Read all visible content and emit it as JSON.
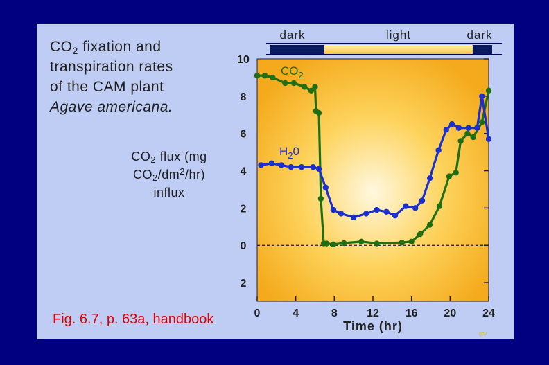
{
  "title": {
    "line1_pre": "CO",
    "line1_sub": "2",
    "line1_post": " fixation and",
    "line2": "transpiration rates",
    "line3": "of the CAM plant",
    "line4": "Agave americana."
  },
  "ylabel": {
    "line1_pre": "CO",
    "line1_sub": "2",
    "line1_post": " flux (mg",
    "line2_pre": "CO",
    "line2_sub": "2",
    "line2_mid": "/dm",
    "line2_sup": "2",
    "line2_post": "/hr)",
    "line3": "influx"
  },
  "citation": "Fig. 6.7, p. 63a, handbook",
  "mark": "gov",
  "colors": {
    "background": "#000080",
    "panel": "#bfcdf5",
    "co2_series": "#1f6e14",
    "h2o_series": "#1a2fd0",
    "citation": "#e00000"
  },
  "chart_data": {
    "type": "line",
    "xlabel": "Time (hr)",
    "ylabel": "CO2 flux (mg CO2/dm2/hr) influx",
    "xlim": [
      0,
      24
    ],
    "ylim": [
      -3,
      10
    ],
    "x_ticks": [
      "0",
      "4",
      "8",
      "12",
      "16",
      "20",
      "24"
    ],
    "y_ticks": [
      {
        "value": 10,
        "label": "10"
      },
      {
        "value": 8,
        "label": "8"
      },
      {
        "value": 6,
        "label": "6"
      },
      {
        "value": 4,
        "label": "4"
      },
      {
        "value": 2,
        "label": "2"
      },
      {
        "value": 0,
        "label": "0"
      },
      {
        "value": -2,
        "label": "2"
      }
    ],
    "zero_line": "dashed",
    "phases": [
      {
        "label": "dark",
        "start": 0,
        "end": 5.9
      },
      {
        "label": "light",
        "start": 5.9,
        "end": 21.9
      },
      {
        "label": "dark",
        "start": 21.9,
        "end": 24
      }
    ],
    "series": [
      {
        "name": "CO2",
        "label_parts": [
          "CO",
          "2"
        ],
        "x": [
          0,
          0.8,
          1.6,
          2.9,
          3.8,
          4.9,
          5.6,
          6.0,
          6.1,
          6.4,
          6.6,
          6.9,
          7.2,
          7.9,
          9.0,
          10.8,
          12.4,
          15.0,
          16.0,
          16.9,
          17.9,
          18.9,
          19.9,
          20.6,
          21.1,
          21.8,
          22.4,
          23.3,
          24.0
        ],
        "y": [
          9.1,
          9.1,
          9.0,
          8.7,
          8.7,
          8.5,
          8.3,
          8.5,
          7.2,
          7.1,
          2.5,
          0.1,
          0.1,
          0.05,
          0.12,
          0.2,
          0.1,
          0.15,
          0.2,
          0.6,
          1.1,
          2.1,
          3.7,
          3.9,
          5.6,
          6.0,
          5.8,
          6.6,
          8.3
        ]
      },
      {
        "name": "H20",
        "label_parts": [
          "H",
          "2",
          "0"
        ],
        "x": [
          0.4,
          1.5,
          2.5,
          3.5,
          4.6,
          5.8,
          6.4,
          7.1,
          7.9,
          8.7,
          10.0,
          11.3,
          12.4,
          13.4,
          14.3,
          15.4,
          16.4,
          17.1,
          17.9,
          18.8,
          19.6,
          20.2,
          20.9,
          21.9,
          22.8,
          23.3,
          24.0
        ],
        "y": [
          4.3,
          4.4,
          4.3,
          4.2,
          4.2,
          4.2,
          4.1,
          3.1,
          1.9,
          1.7,
          1.5,
          1.7,
          1.9,
          1.8,
          1.6,
          2.1,
          2.0,
          2.4,
          3.6,
          5.1,
          6.2,
          6.5,
          6.3,
          6.3,
          6.3,
          8.0,
          5.7
        ]
      }
    ]
  }
}
